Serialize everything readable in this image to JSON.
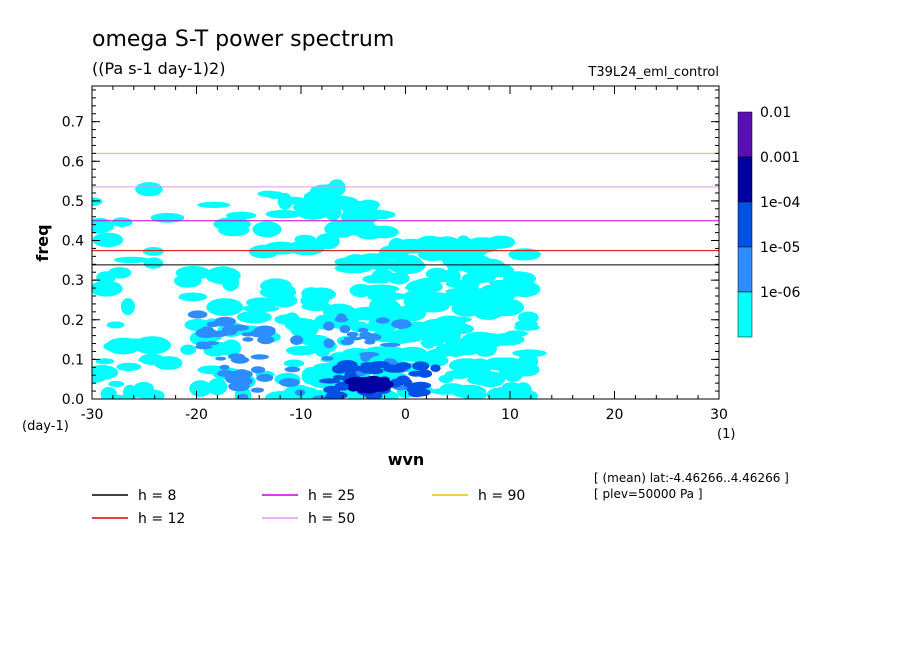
{
  "chart_data": {
    "type": "heatmap",
    "title": "omega S-T power spectrum",
    "subtitle": "((Pa s-1 day-1)2)",
    "run_label": "T39L24_eml_control",
    "xlabel": "wvn",
    "ylabel": "freq",
    "x_unit": "(1)",
    "y_unit": "(day-1)",
    "xlim": [
      -30,
      30
    ],
    "ylim": [
      0,
      0.79
    ],
    "x_ticks": [
      "-30",
      "-20",
      "-10",
      "0",
      "10",
      "20",
      "30"
    ],
    "y_ticks": [
      "0.0",
      "0.1",
      "0.2",
      "0.3",
      "0.4",
      "0.5",
      "0.6",
      "0.7"
    ],
    "colorbar": {
      "labels": [
        "0.01",
        "0.001",
        "1e-04",
        "1e-05",
        "1e-06"
      ],
      "colors": [
        "#5a0fb4",
        "#0000a0",
        "#0050e6",
        "#2d8cff",
        "#00ffff"
      ]
    },
    "contour_regions": [
      {
        "level": "1e-06",
        "color": "#00ffff",
        "x": [
          -30,
          -1
        ],
        "y": [
          0.0,
          0.55
        ]
      },
      {
        "level": "1e-06",
        "color": "#00ffff",
        "x": [
          -3,
          12
        ],
        "y": [
          0.0,
          0.4
        ]
      },
      {
        "level": "1e-05",
        "color": "#2d8cff",
        "x": [
          -20,
          0
        ],
        "y": [
          0.0,
          0.22
        ]
      },
      {
        "level": "1e-04",
        "color": "#0050e6",
        "x": [
          -8,
          3
        ],
        "y": [
          0.0,
          0.09
        ]
      },
      {
        "level": "0.001",
        "color": "#0000a0",
        "x": [
          -5,
          -2
        ],
        "y": [
          0.02,
          0.05
        ]
      }
    ],
    "dispersion_curves": [
      {
        "h": 8,
        "label": "h =  8",
        "color": "#000000"
      },
      {
        "h": 12,
        "label": "h = 12",
        "color": "#e00000"
      },
      {
        "h": 25,
        "label": "h = 25",
        "color": "#cc00cc"
      },
      {
        "h": 50,
        "label": "h = 50",
        "color": "#dd99ee"
      },
      {
        "h": 90,
        "label": "h = 90",
        "color": "#f0c000"
      }
    ],
    "annotations": [
      "[ (mean) lat:-4.46266..4.46266 ]",
      "[ plev=50000 Pa ]"
    ]
  }
}
